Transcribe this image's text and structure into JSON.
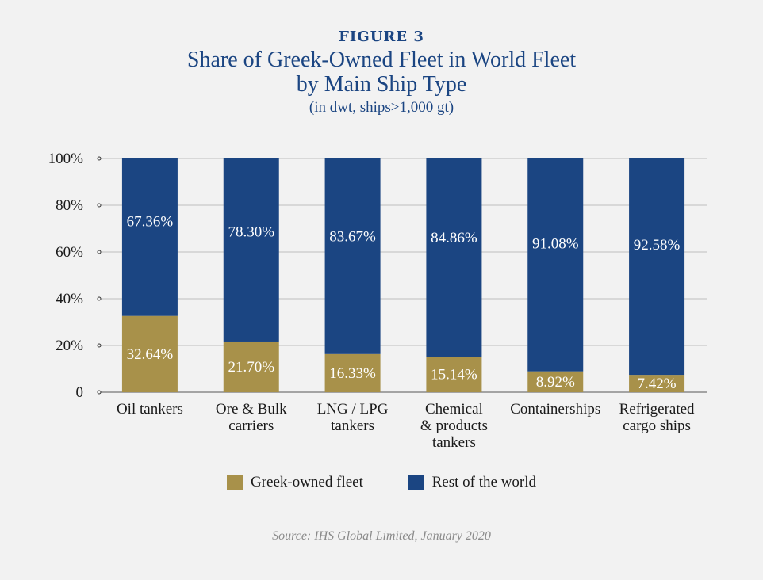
{
  "header": {
    "figure_label": "FIGURE 3",
    "title_line1": "Share of Greek-Owned Fleet in World Fleet",
    "title_line2": "by Main Ship Type",
    "subtitle": "(in dwt, ships>1,000 gt)"
  },
  "source": "Source: IHS Global Limited, January 2020",
  "colors": {
    "greek": "#a8914a",
    "rest": "#1b4582",
    "grid": "#bfbfbf",
    "axis": "#555555"
  },
  "chart_data": {
    "type": "bar",
    "stacked": true,
    "percent_stacked": true,
    "categories": [
      [
        "Oil tankers"
      ],
      [
        "Ore & Bulk",
        "carriers"
      ],
      [
        "LNG / LPG",
        "tankers"
      ],
      [
        "Chemical",
        "& products",
        "tankers"
      ],
      [
        "Containerships"
      ],
      [
        "Refrigerated",
        "cargo ships"
      ]
    ],
    "series": [
      {
        "name": "Greek-owned fleet",
        "values": [
          32.64,
          21.7,
          16.33,
          15.14,
          8.92,
          7.42
        ],
        "labels": [
          "32.64%",
          "21.70%",
          "16.33%",
          "15.14%",
          "8.92%",
          "7.42%"
        ]
      },
      {
        "name": "Rest of the world",
        "values": [
          67.36,
          78.3,
          83.67,
          84.86,
          91.08,
          92.58
        ],
        "labels": [
          "67.36%",
          "78.30%",
          "83.67%",
          "84.86%",
          "91.08%",
          "92.58%"
        ]
      }
    ],
    "yticks": [
      {
        "value": 0,
        "label": "0"
      },
      {
        "value": 20,
        "label": "20%"
      },
      {
        "value": 40,
        "label": "40%"
      },
      {
        "value": 60,
        "label": "60%"
      },
      {
        "value": 80,
        "label": "80%"
      },
      {
        "value": 100,
        "label": "100%"
      }
    ],
    "ylim": [
      0,
      100
    ],
    "grid": true,
    "legend_position": "bottom"
  }
}
